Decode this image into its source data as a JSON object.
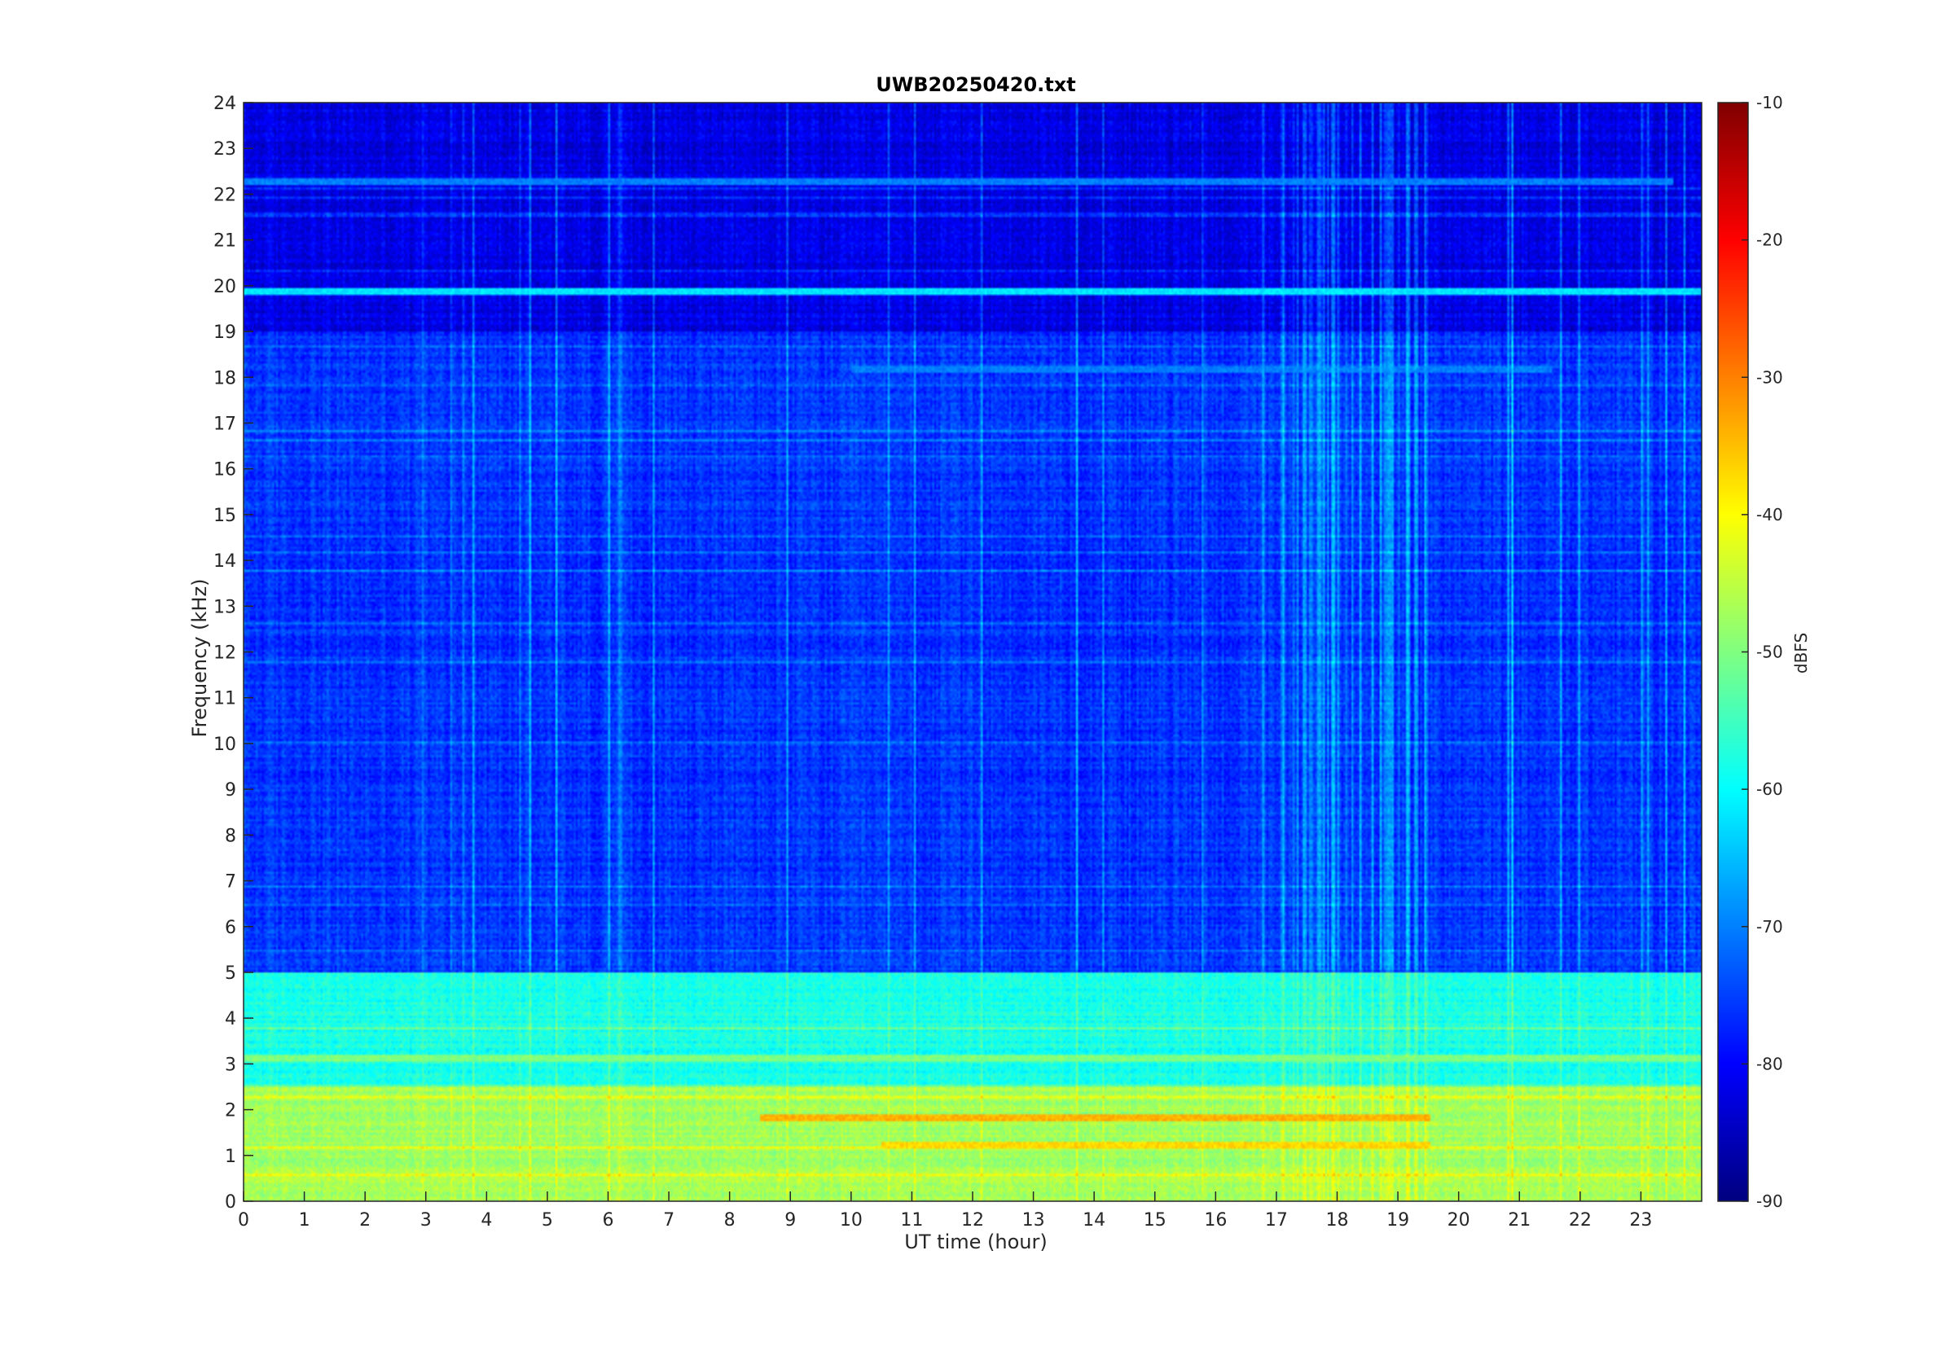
{
  "chart_data": {
    "type": "heatmap",
    "title": "UWB20250420.txt",
    "xlabel": "UT time (hour)",
    "ylabel": "Frequency (kHz)",
    "xlim": [
      0,
      24
    ],
    "ylim": [
      0,
      24
    ],
    "x_ticks": [
      0,
      1,
      2,
      3,
      4,
      5,
      6,
      7,
      8,
      9,
      10,
      11,
      12,
      13,
      14,
      15,
      16,
      17,
      18,
      19,
      20,
      21,
      22,
      23
    ],
    "y_ticks": [
      0,
      1,
      2,
      3,
      4,
      5,
      6,
      7,
      8,
      9,
      10,
      11,
      12,
      13,
      14,
      15,
      16,
      17,
      18,
      19,
      20,
      21,
      22,
      23,
      24
    ],
    "colormap": "jet",
    "colorbar": {
      "label": "dBFS",
      "range": [
        -90,
        -10
      ],
      "ticks": [
        -90,
        -80,
        -70,
        -60,
        -50,
        -40,
        -30,
        -20,
        -10
      ]
    },
    "spectral_features": [
      {
        "freq_khz": 19.85,
        "level_dbfs": -62,
        "hours": [
          0,
          24
        ]
      },
      {
        "freq_khz": 22.25,
        "level_dbfs": -70,
        "hours": [
          0,
          23.5
        ]
      },
      {
        "freq_khz": 18.15,
        "level_dbfs": -70,
        "hours": [
          10,
          21.5
        ]
      },
      {
        "freq_khz": 1.8,
        "level_dbfs": -34,
        "hours": [
          8.5,
          19.5
        ]
      },
      {
        "freq_khz": 1.2,
        "level_dbfs": -37,
        "hours": [
          10.5,
          19.5
        ]
      },
      {
        "freq_khz": 3.1,
        "level_dbfs": -50,
        "hours": [
          0,
          24
        ]
      },
      {
        "freq_khz": 4.8,
        "level_dbfs": -60,
        "hours": [
          0,
          24
        ]
      }
    ],
    "background_levels": [
      {
        "freq_range_khz": [
          0,
          2.5
        ],
        "level_dbfs": -47
      },
      {
        "freq_range_khz": [
          2.5,
          5
        ],
        "level_dbfs": -58
      },
      {
        "freq_range_khz": [
          5,
          19
        ],
        "level_dbfs": -76
      },
      {
        "freq_range_khz": [
          19,
          24
        ],
        "level_dbfs": -82
      }
    ]
  }
}
